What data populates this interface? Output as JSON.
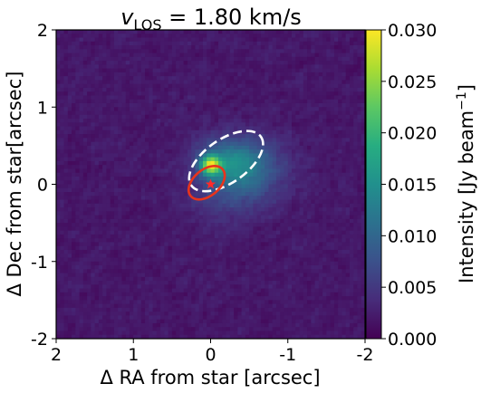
{
  "chart_data": {
    "type": "heatmap",
    "title_prefix": "v",
    "title_subscript": "LOS",
    "title_value": " = 1.80 km/s",
    "xlabel": "Δ RA from star [arcsec]",
    "ylabel": "Δ Dec from star[arcsec]",
    "xlim": [
      2,
      -2
    ],
    "ylim": [
      -2,
      2
    ],
    "xticks": [
      2,
      1,
      0,
      -1,
      -2
    ],
    "xtick_labels": [
      "2",
      "1",
      "0",
      "-1",
      "-2"
    ],
    "yticks": [
      2,
      1,
      0,
      -1,
      -2
    ],
    "ytick_labels": [
      "2",
      "1",
      "0",
      "-1",
      "-2"
    ],
    "colorbar": {
      "label": "Intensity [Jy beam",
      "label_superscript": "−1",
      "label_suffix": "]",
      "range": [
        0.0,
        0.03
      ],
      "ticks": [
        0.0,
        0.005,
        0.01,
        0.015,
        0.02,
        0.025,
        0.03
      ],
      "tick_labels": [
        "0.000",
        "0.005",
        "0.010",
        "0.015",
        "0.020",
        "0.025",
        "0.030"
      ],
      "colormap": "viridis"
    },
    "background_level": 0.002,
    "emission_components": [
      {
        "ra": 0.0,
        "dec": 0.25,
        "sigma_ra": 0.09,
        "sigma_dec": 0.09,
        "peak": 0.02
      },
      {
        "ra": -0.25,
        "dec": 0.28,
        "sigma_ra": 0.3,
        "sigma_dec": 0.22,
        "peak": 0.009
      },
      {
        "ra": -0.55,
        "dec": 0.2,
        "sigma_ra": 0.35,
        "sigma_dec": 0.3,
        "peak": 0.005
      },
      {
        "ra": -0.2,
        "dec": -0.15,
        "sigma_ra": 0.35,
        "sigma_dec": 0.25,
        "peak": 0.003
      }
    ],
    "overlays": [
      {
        "kind": "ellipse",
        "style": "dashed",
        "color": "#ffffff",
        "ra": -0.2,
        "dec": 0.3,
        "semi_major": 0.55,
        "semi_minor": 0.28,
        "angle_deg": 35
      },
      {
        "kind": "ellipse",
        "style": "solid",
        "color": "#e8341c",
        "ra": 0.05,
        "dec": 0.02,
        "semi_major": 0.27,
        "semi_minor": 0.17,
        "angle_deg": 40
      },
      {
        "kind": "marker",
        "symbol": "star",
        "color": "#ff2a2a",
        "ra": 0.0,
        "dec": 0.0
      }
    ]
  }
}
